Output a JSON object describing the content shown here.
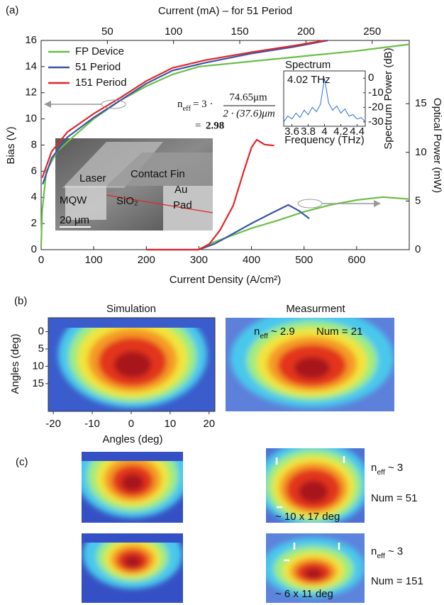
{
  "panel_labels": [
    "(a)",
    "(b)",
    "(c)"
  ],
  "chart_data": [
    {
      "type": "line",
      "xlabel": "Current Density (A/cm²)",
      "ylabel": "Bias (V)",
      "y2label": "Optical Power (mW)",
      "x2label": "Current (mA) – for 51 Period",
      "xlim": [
        0,
        700
      ],
      "xticks": [
        0,
        100,
        200,
        300,
        400,
        500,
        600
      ],
      "x2lim": [
        0,
        278
      ],
      "x2ticks": [
        50,
        100,
        150,
        200,
        250
      ],
      "ylim": [
        0,
        16
      ],
      "yticks": [
        0,
        2,
        4,
        6,
        8,
        10,
        12,
        14,
        16
      ],
      "y2lim": [
        0,
        21.5
      ],
      "y2ticks": [
        0,
        5,
        10,
        15
      ],
      "legend": "upper left",
      "series": [
        {
          "name": "FP Device",
          "color": "#6abf45",
          "x": [
            0,
            2,
            10,
            30,
            60,
            100,
            150,
            200,
            250,
            300,
            400,
            500,
            600,
            700
          ],
          "values": [
            0.3,
            3,
            6,
            7.5,
            8.6,
            10,
            11.4,
            12.5,
            13.4,
            14,
            14.4,
            14.8,
            15.2,
            15.7
          ]
        },
        {
          "name": "51 Period",
          "color": "#3a55a8",
          "x": [
            3,
            20,
            50,
            100,
            150,
            200,
            250,
            313,
            400,
            480,
            545
          ],
          "values": [
            5,
            7,
            8.6,
            10.1,
            11.4,
            12.7,
            13.7,
            14.3,
            15,
            15.5,
            16
          ]
        },
        {
          "name": "151 Period",
          "color": "#e0262b",
          "x": [
            2,
            20,
            50,
            100,
            150,
            200,
            250,
            313,
            400,
            480,
            540
          ],
          "values": [
            5.5,
            7.5,
            9,
            10.4,
            11.6,
            12.9,
            13.9,
            14.5,
            15.1,
            15.6,
            16
          ]
        },
        {
          "axis": "y2",
          "color": "#6abf45",
          "x": [
            298,
            330,
            400,
            450,
            500,
            550,
            600,
            650,
            700
          ],
          "values": [
            0,
            0.8,
            2.2,
            3,
            3.9,
            4.6,
            5.1,
            5.4,
            5.2
          ]
        },
        {
          "axis": "y2",
          "color": "#3a55a8",
          "x": [
            200,
            300,
            330,
            360,
            400,
            440,
            470,
            490,
            510
          ],
          "values": [
            0,
            0,
            0.6,
            1.5,
            2.7,
            3.8,
            4.6,
            4.0,
            3.2
          ]
        },
        {
          "axis": "y2",
          "color": "#e0262b",
          "x": [
            200,
            300,
            320,
            340,
            365,
            385,
            400,
            410,
            425,
            443
          ],
          "values": [
            0,
            0,
            0.6,
            2,
            4.5,
            8,
            10.5,
            11.3,
            10.8,
            10.7
          ]
        }
      ]
    },
    {
      "type": "line",
      "title": "Spectrum",
      "annotation": "4.02 THz",
      "xlabel": "Frequency (THz)",
      "ylabel": "Spectrum Power (dB)",
      "xlim": [
        3.5,
        4.5
      ],
      "xticks": [
        3.6,
        3.8,
        4,
        4.2,
        4.4
      ],
      "ylim": [
        -33,
        5
      ],
      "yticks": [
        0,
        -10,
        -20,
        -30
      ],
      "series": [
        {
          "color": "#2a6fd6",
          "x": [
            3.5,
            3.55,
            3.6,
            3.65,
            3.7,
            3.75,
            3.8,
            3.85,
            3.9,
            3.95,
            4.0,
            4.05,
            4.1,
            4.15,
            4.2,
            4.25,
            4.3,
            4.35,
            4.4,
            4.45,
            4.5
          ],
          "values": [
            -30,
            -26,
            -28,
            -24,
            -27,
            -22,
            -25,
            -20,
            -23,
            -18,
            0,
            -17,
            -22,
            -19,
            -24,
            -21,
            -26,
            -25,
            -28,
            -27,
            -30
          ]
        }
      ]
    },
    {
      "type": "heatmap",
      "title": "Simulation",
      "xlabel": "Angles (deg)",
      "ylabel": "Angles (deg)",
      "xlim": [
        -21.3,
        21.5
      ],
      "xticks": [
        -20,
        -10,
        0,
        10,
        20
      ],
      "ylim": [
        23,
        -4
      ],
      "yticks": [
        0,
        5,
        10,
        15
      ]
    }
  ],
  "equation": {
    "n": "n",
    "sub": "eff",
    "prefix": "= 3 ·",
    "numerator": "74.65μm",
    "denominator": "2 · (37.6)μm",
    "result_eq": "=",
    "result": "2.98"
  },
  "sem_labels": {
    "laser": "Laser",
    "fin": "Contact Fin",
    "mqw": "MQW",
    "sio2": "SiO₂",
    "au": "Au",
    "pad": "Pad",
    "scale": "20 μm"
  },
  "panel_b": {
    "measurement_title": "Measurment",
    "neff": [
      "n",
      "eff",
      " ~ 2.9"
    ],
    "num": "Num = 21"
  },
  "panel_c": [
    {
      "neff": [
        "n",
        "eff",
        " ~ 3"
      ],
      "num": "Num = 51",
      "size": "~ 10 x 17 deg"
    },
    {
      "neff": [
        "n",
        "eff",
        " ~ 3"
      ],
      "num": "Num = 151",
      "size": "~ 6 x 11 deg"
    }
  ]
}
